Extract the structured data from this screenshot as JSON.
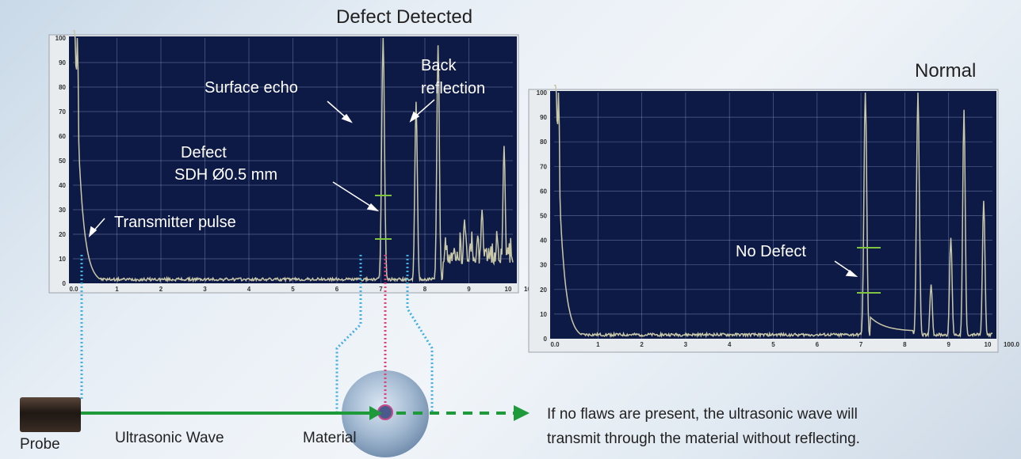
{
  "titles": {
    "defect": "Defect Detected",
    "normal": "Normal"
  },
  "annotations": {
    "surface_echo": "Surface echo",
    "back_reflection_line1": "Back",
    "back_reflection_line2": "reflection",
    "defect_line1": "Defect",
    "defect_line2": "SDH Ø0.5 mm",
    "transmitter_pulse": "Transmitter pulse",
    "no_defect": "No Defect"
  },
  "labels": {
    "probe": "Probe",
    "ultrasonic_wave": "Ultrasonic Wave",
    "material": "Material"
  },
  "caption": {
    "line1": "If no flaws are present, the ultrasonic wave will",
    "line2": "transmit through the material without reflecting."
  },
  "colors": {
    "screen_bg": "#0e1a46",
    "grid": "#8d9ac9",
    "trace": "#c9c8a8",
    "gate": "#7fc43f",
    "wave_arrow": "#1e9a3a",
    "dotted_blue": "#3fb0e0",
    "dotted_pink": "#e0407a"
  },
  "chart_data": [
    {
      "type": "line",
      "y_ticks": [
        "0",
        "10",
        "20",
        "30",
        "40",
        "50",
        "60",
        "70",
        "80",
        "90",
        "100"
      ],
      "x_ticks": [
        "0.0",
        "1",
        "2",
        "3",
        "4",
        "5",
        "6",
        "7",
        "8",
        "9",
        "10",
        "100.0"
      ],
      "xlim": [
        0,
        10
      ],
      "ylim": [
        0,
        100
      ],
      "grid": true,
      "peaks": [
        {
          "x": 0.1,
          "y": 100
        },
        {
          "x": 7.05,
          "y": 100
        },
        {
          "x": 7.8,
          "y": 74
        },
        {
          "x": 8.3,
          "y": 97
        },
        {
          "x": 8.9,
          "y": 26
        },
        {
          "x": 9.3,
          "y": 30
        },
        {
          "x": 9.8,
          "y": 56
        }
      ]
    },
    {
      "type": "line",
      "y_ticks": [
        "0",
        "10",
        "20",
        "30",
        "40",
        "50",
        "60",
        "70",
        "80",
        "90",
        "100"
      ],
      "x_ticks": [
        "0.0",
        "1",
        "2",
        "3",
        "4",
        "5",
        "6",
        "7",
        "8",
        "9",
        "10",
        "100.0"
      ],
      "xlim": [
        0,
        10
      ],
      "ylim": [
        0,
        100
      ],
      "grid": true,
      "peaks": [
        {
          "x": 0.1,
          "y": 100
        },
        {
          "x": 7.1,
          "y": 100
        },
        {
          "x": 8.3,
          "y": 100
        },
        {
          "x": 8.6,
          "y": 22
        },
        {
          "x": 9.05,
          "y": 41
        },
        {
          "x": 9.35,
          "y": 93
        },
        {
          "x": 9.8,
          "y": 56
        }
      ]
    }
  ]
}
